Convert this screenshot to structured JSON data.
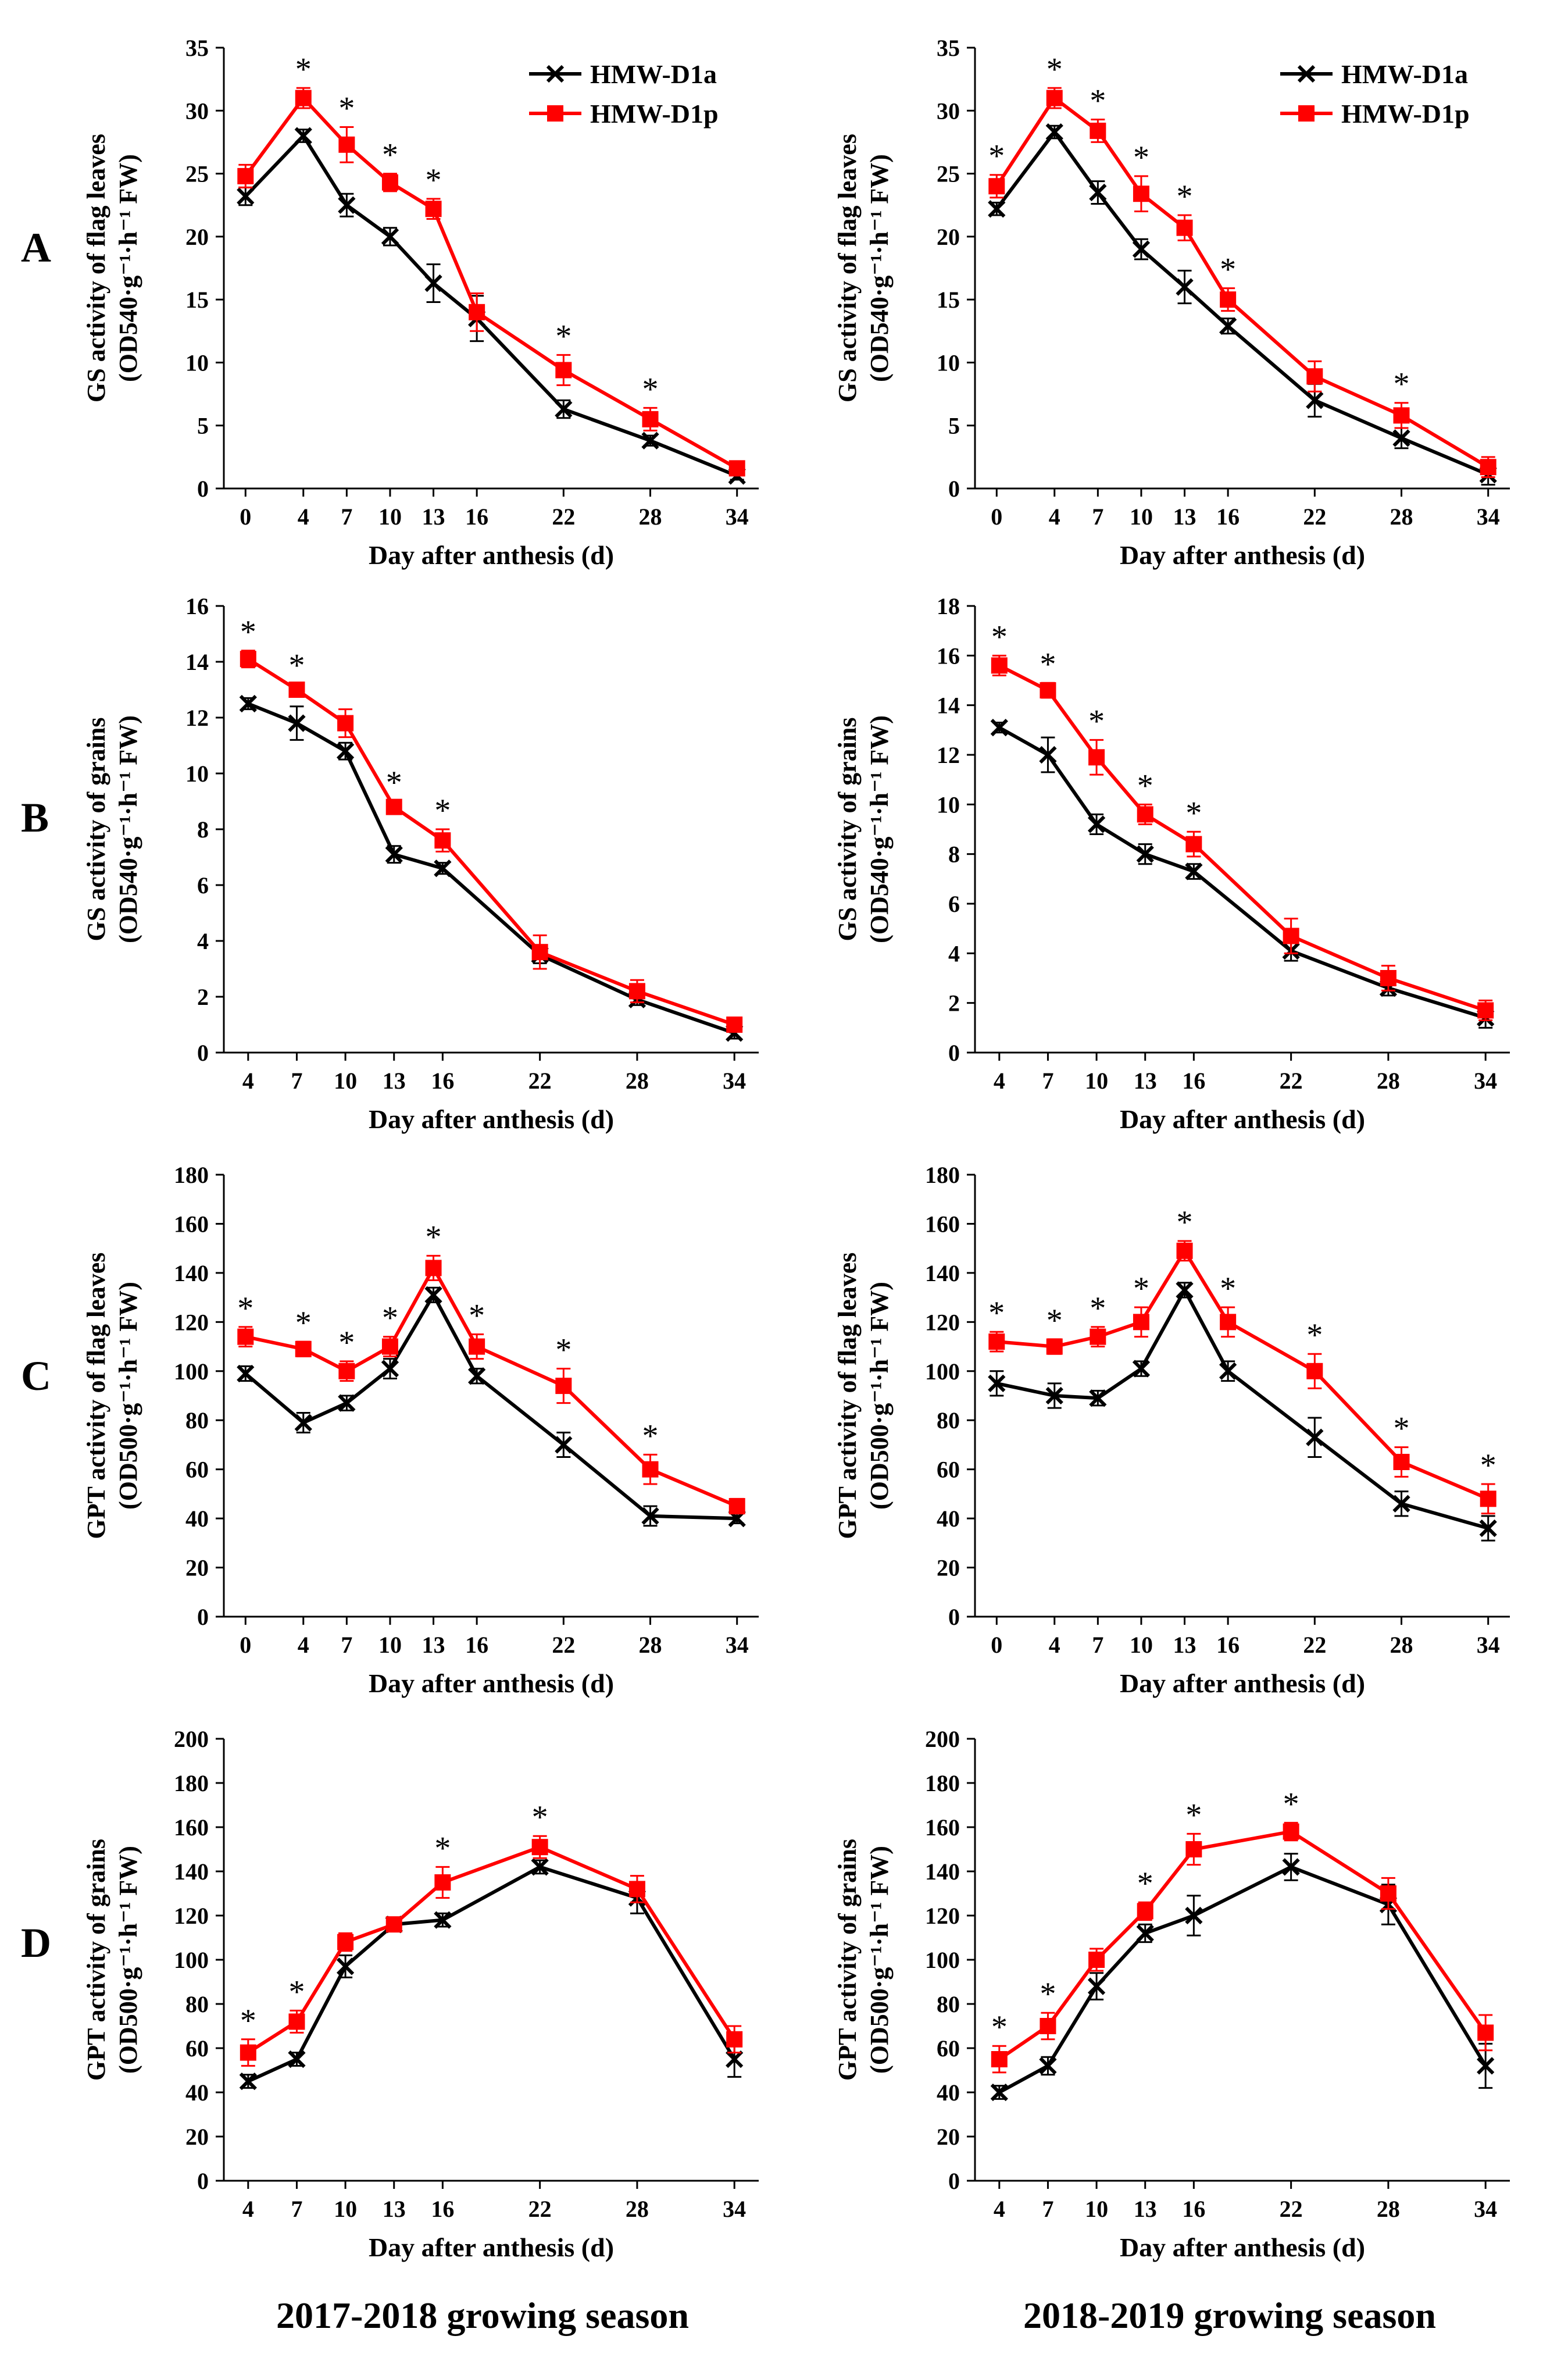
{
  "figure": {
    "row_labels": [
      "A",
      "B",
      "C",
      "D"
    ],
    "season_labels": [
      "2017-2018 growing season",
      "2018-2019 growing season"
    ],
    "colors": {
      "HMW-D1a": "#000000",
      "HMW-D1p": "#ff0000"
    }
  },
  "chart_data": [
    {
      "id": "A1",
      "type": "line",
      "row": "A",
      "season": "2017-2018",
      "ylabel_line1": "GS activity of flag leaves",
      "ylabel_line2": "(OD540·g⁻¹·h⁻¹ FW)",
      "xlabel": "Day after anthesis (d)",
      "x": [
        0,
        4,
        7,
        10,
        13,
        16,
        22,
        28,
        34
      ],
      "xticks": [
        "0",
        "4",
        "7",
        "10",
        "13",
        "16",
        "22",
        "28",
        "34"
      ],
      "xlim": [
        -1.5,
        35.5
      ],
      "ylim": [
        0,
        35
      ],
      "yticks": [
        "0",
        "5",
        "10",
        "15",
        "20",
        "25",
        "30",
        "35"
      ],
      "legend": "top-right",
      "series": [
        {
          "name": "HMW-D1a",
          "marker": "x",
          "values": [
            23.2,
            28.0,
            22.5,
            20.0,
            16.3,
            13.5,
            6.3,
            3.8,
            1.0
          ],
          "errors": [
            0.7,
            0.5,
            0.9,
            0.7,
            1.5,
            1.8,
            0.7,
            0.4,
            0.3
          ]
        },
        {
          "name": "HMW-D1p",
          "marker": "square",
          "values": [
            24.8,
            31.0,
            27.3,
            24.3,
            22.2,
            14.0,
            9.4,
            5.5,
            1.6
          ],
          "errors": [
            0.9,
            0.8,
            1.4,
            0.7,
            0.8,
            1.5,
            1.2,
            0.9,
            0.4
          ]
        }
      ],
      "significance": [
        false,
        true,
        true,
        true,
        true,
        false,
        true,
        true,
        false
      ]
    },
    {
      "id": "A2",
      "type": "line",
      "row": "A",
      "season": "2018-2019",
      "ylabel_line1": "GS activity of flag leaves",
      "ylabel_line2": "(OD540·g⁻¹·h⁻¹ FW)",
      "xlabel": "Day after anthesis (d)",
      "x": [
        0,
        4,
        7,
        10,
        13,
        16,
        22,
        28,
        34
      ],
      "xticks": [
        "0",
        "4",
        "7",
        "10",
        "13",
        "16",
        "22",
        "28",
        "34"
      ],
      "xlim": [
        -1.5,
        35.5
      ],
      "ylim": [
        0,
        35
      ],
      "yticks": [
        "0",
        "5",
        "10",
        "15",
        "20",
        "25",
        "30",
        "35"
      ],
      "legend": "top-right",
      "series": [
        {
          "name": "HMW-D1a",
          "marker": "x",
          "values": [
            22.2,
            28.3,
            23.5,
            19.0,
            16.0,
            12.9,
            7.0,
            4.0,
            1.1
          ],
          "errors": [
            0.5,
            0.5,
            0.9,
            0.8,
            1.3,
            0.6,
            1.3,
            0.8,
            0.8
          ]
        },
        {
          "name": "HMW-D1p",
          "marker": "square",
          "values": [
            24.0,
            31.0,
            28.4,
            23.4,
            20.7,
            15.0,
            8.9,
            5.8,
            1.7
          ],
          "errors": [
            0.9,
            0.8,
            0.9,
            1.4,
            1.0,
            0.9,
            1.2,
            1.0,
            0.8
          ]
        }
      ],
      "significance": [
        true,
        true,
        true,
        true,
        true,
        true,
        false,
        true,
        false
      ]
    },
    {
      "id": "B1",
      "type": "line",
      "row": "B",
      "season": "2017-2018",
      "ylabel_line1": "GS activity of grains",
      "ylabel_line2": "(OD540·g⁻¹·h⁻¹ FW)",
      "xlabel": "Day after anthesis (d)",
      "x": [
        4,
        7,
        10,
        13,
        16,
        22,
        28,
        34
      ],
      "xticks": [
        "4",
        "7",
        "10",
        "13",
        "16",
        "22",
        "28",
        "34"
      ],
      "xlim": [
        2.5,
        35.5
      ],
      "ylim": [
        0,
        16
      ],
      "yticks": [
        "0",
        "2",
        "4",
        "6",
        "8",
        "10",
        "12",
        "14",
        "16"
      ],
      "legend": "none",
      "series": [
        {
          "name": "HMW-D1a",
          "marker": "x",
          "values": [
            12.5,
            11.8,
            10.8,
            7.1,
            6.6,
            3.5,
            1.9,
            0.7
          ],
          "errors": [
            0.2,
            0.6,
            0.3,
            0.3,
            0.2,
            0.3,
            0.2,
            0.2
          ]
        },
        {
          "name": "HMW-D1p",
          "marker": "square",
          "values": [
            14.1,
            13.0,
            11.8,
            8.8,
            7.6,
            3.6,
            2.2,
            1.0
          ],
          "errors": [
            0.3,
            0.2,
            0.5,
            0.2,
            0.4,
            0.6,
            0.4,
            0.2
          ]
        }
      ],
      "significance": [
        true,
        true,
        false,
        true,
        true,
        false,
        false,
        false
      ]
    },
    {
      "id": "B2",
      "type": "line",
      "row": "B",
      "season": "2018-2019",
      "ylabel_line1": "GS activity of grains",
      "ylabel_line2": "(OD540·g⁻¹·h⁻¹ FW)",
      "xlabel": "Day after anthesis (d)",
      "x": [
        4,
        7,
        10,
        13,
        16,
        22,
        28,
        34
      ],
      "xticks": [
        "4",
        "7",
        "10",
        "13",
        "16",
        "22",
        "28",
        "34"
      ],
      "xlim": [
        2.5,
        35.5
      ],
      "ylim": [
        0,
        18
      ],
      "yticks": [
        "0",
        "2",
        "4",
        "6",
        "8",
        "10",
        "12",
        "14",
        "16",
        "18"
      ],
      "legend": "none",
      "series": [
        {
          "name": "HMW-D1a",
          "marker": "x",
          "values": [
            13.1,
            12.0,
            9.2,
            8.0,
            7.3,
            4.1,
            2.6,
            1.4
          ],
          "errors": [
            0.2,
            0.7,
            0.4,
            0.4,
            0.3,
            0.4,
            0.3,
            0.4
          ]
        },
        {
          "name": "HMW-D1p",
          "marker": "square",
          "values": [
            15.6,
            14.6,
            11.9,
            9.6,
            8.4,
            4.7,
            3.0,
            1.7
          ],
          "errors": [
            0.4,
            0.3,
            0.7,
            0.4,
            0.5,
            0.7,
            0.5,
            0.4
          ]
        }
      ],
      "significance": [
        true,
        true,
        true,
        true,
        true,
        false,
        false,
        false
      ]
    },
    {
      "id": "C1",
      "type": "line",
      "row": "C",
      "season": "2017-2018",
      "ylabel_line1": "GPT  activity of flag leaves",
      "ylabel_line2": "(OD500·g⁻¹·h⁻¹ FW)",
      "xlabel": "Day after anthesis (d)",
      "x": [
        0,
        4,
        7,
        10,
        13,
        16,
        22,
        28,
        34
      ],
      "xticks": [
        "0",
        "4",
        "7",
        "10",
        "13",
        "16",
        "22",
        "28",
        "34"
      ],
      "xlim": [
        -1.5,
        35.5
      ],
      "ylim": [
        0,
        180
      ],
      "yticks": [
        "0",
        "20",
        "40",
        "60",
        "80",
        "100",
        "120",
        "140",
        "160",
        "180"
      ],
      "legend": "none",
      "series": [
        {
          "name": "HMW-D1a",
          "marker": "x",
          "values": [
            99,
            79,
            87,
            101,
            131,
            98,
            70,
            41,
            40
          ],
          "errors": [
            3,
            4,
            3,
            4,
            3,
            3,
            5,
            4,
            2
          ]
        },
        {
          "name": "HMW-D1p",
          "marker": "square",
          "values": [
            114,
            109,
            100,
            110,
            142,
            110,
            94,
            60,
            45
          ],
          "errors": [
            4,
            3,
            4,
            4,
            5,
            5,
            7,
            6,
            3
          ]
        }
      ],
      "significance": [
        true,
        true,
        true,
        true,
        true,
        true,
        true,
        true,
        false
      ]
    },
    {
      "id": "C2",
      "type": "line",
      "row": "C",
      "season": "2018-2019",
      "ylabel_line1": "GPT  activity of flag leaves",
      "ylabel_line2": "(OD500·g⁻¹·h⁻¹ FW)",
      "xlabel": "Day after anthesis (d)",
      "x": [
        0,
        4,
        7,
        10,
        13,
        16,
        22,
        28,
        34
      ],
      "xticks": [
        "0",
        "4",
        "7",
        "10",
        "13",
        "16",
        "22",
        "28",
        "34"
      ],
      "xlim": [
        -1.5,
        35.5
      ],
      "ylim": [
        0,
        180
      ],
      "yticks": [
        "0",
        "20",
        "40",
        "60",
        "80",
        "100",
        "120",
        "140",
        "160",
        "180"
      ],
      "legend": "none",
      "series": [
        {
          "name": "HMW-D1a",
          "marker": "x",
          "values": [
            95,
            90,
            89,
            101,
            133,
            100,
            73,
            46,
            36
          ],
          "errors": [
            5,
            5,
            3,
            3,
            3,
            4,
            8,
            5,
            5
          ]
        },
        {
          "name": "HMW-D1p",
          "marker": "square",
          "values": [
            112,
            110,
            114,
            120,
            149,
            120,
            100,
            63,
            48
          ],
          "errors": [
            4,
            3,
            4,
            6,
            4,
            6,
            7,
            6,
            6
          ]
        }
      ],
      "significance": [
        true,
        true,
        true,
        true,
        true,
        true,
        true,
        true,
        true
      ]
    },
    {
      "id": "D1",
      "type": "line",
      "row": "D",
      "season": "2017-2018",
      "ylabel_line1": "GPT  activity of grains",
      "ylabel_line2": "(OD500·g⁻¹·h⁻¹ FW)",
      "xlabel": "Day after anthesis (d)",
      "x": [
        4,
        7,
        10,
        13,
        16,
        22,
        28,
        34
      ],
      "xticks": [
        "4",
        "7",
        "10",
        "13",
        "16",
        "22",
        "28",
        "34"
      ],
      "xlim": [
        2.5,
        35.5
      ],
      "ylim": [
        0,
        200
      ],
      "yticks": [
        "0",
        "20",
        "40",
        "60",
        "80",
        "100",
        "120",
        "140",
        "160",
        "180",
        "200"
      ],
      "legend": "none",
      "series": [
        {
          "name": "HMW-D1a",
          "marker": "x",
          "values": [
            45,
            55,
            97,
            116,
            118,
            142,
            128,
            55
          ],
          "errors": [
            3,
            3,
            5,
            3,
            3,
            3,
            7,
            8
          ]
        },
        {
          "name": "HMW-D1p",
          "marker": "square",
          "values": [
            58,
            72,
            108,
            116,
            135,
            151,
            132,
            64
          ],
          "errors": [
            6,
            5,
            4,
            3,
            7,
            5,
            6,
            6
          ]
        }
      ],
      "significance": [
        true,
        true,
        false,
        false,
        true,
        true,
        false,
        false
      ]
    },
    {
      "id": "D2",
      "type": "line",
      "row": "D",
      "season": "2018-2019",
      "ylabel_line1": "GPT  activity of grains",
      "ylabel_line2": "(OD500·g⁻¹·h⁻¹ FW)",
      "xlabel": "Day after anthesis (d)",
      "x": [
        4,
        7,
        10,
        13,
        16,
        22,
        28,
        34
      ],
      "xticks": [
        "4",
        "7",
        "10",
        "13",
        "16",
        "22",
        "28",
        "34"
      ],
      "xlim": [
        2.5,
        35.5
      ],
      "ylim": [
        0,
        200
      ],
      "yticks": [
        "0",
        "20",
        "40",
        "60",
        "80",
        "100",
        "120",
        "140",
        "160",
        "180",
        "200"
      ],
      "legend": "none",
      "series": [
        {
          "name": "HMW-D1a",
          "marker": "x",
          "values": [
            40,
            52,
            88,
            112,
            120,
            142,
            125,
            52
          ],
          "errors": [
            3,
            4,
            6,
            4,
            9,
            6,
            9,
            10
          ]
        },
        {
          "name": "HMW-D1p",
          "marker": "square",
          "values": [
            55,
            70,
            100,
            122,
            150,
            158,
            130,
            67
          ],
          "errors": [
            6,
            6,
            5,
            4,
            7,
            4,
            7,
            8
          ]
        }
      ],
      "significance": [
        true,
        true,
        false,
        true,
        true,
        true,
        false,
        false
      ]
    }
  ]
}
